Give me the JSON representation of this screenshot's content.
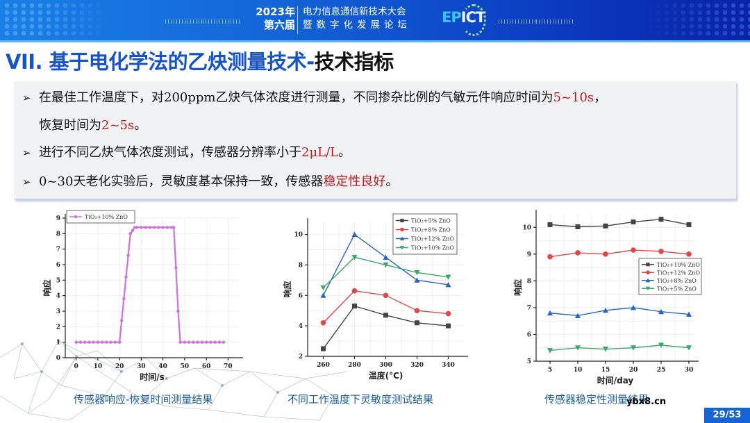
{
  "header": {
    "year": "2023年",
    "edition": "第六届",
    "conference_line1": "电力信息通信新技术大会",
    "conference_line2": "暨数字化发展论坛",
    "logo_prefix": "EP",
    "logo_suffix": "ICT"
  },
  "title": {
    "part1": "VII. 基于电化学法的乙炔测量技术-",
    "part2": "技术指标"
  },
  "bullets": [
    {
      "text_before": "在最佳工作温度下，对200ppm乙炔气体浓度进行测量，不同掺杂比例的气敏元件响应时间为",
      "highlight": "5~10s",
      "text_after": "，"
    },
    {
      "text_before": "恢复时间为",
      "highlight": "2~5s",
      "text_after": "。"
    },
    {
      "text_before": "进行不同乙炔气体浓度测试，传感器分辨率小于",
      "highlight": "2μL/L",
      "text_after": "。"
    },
    {
      "text_before": "0~30天老化实验后，灵敏度基本保持一致，传感器",
      "highlight": "稳定性良好",
      "text_after": "。"
    }
  ],
  "bullet_marker": "➢",
  "captions": [
    "传感器响应-恢复时间测量结果",
    "不同工作温度下灵敏度测试结果",
    "传感器稳定性测量结果"
  ],
  "watermark": "ybx8.cn",
  "page": "29/53",
  "colors": {
    "accent_blue": "#1553c7",
    "highlight_red": "#c0171d",
    "series_purple": "#d070e0",
    "series_gray": "#444444",
    "series_red": "#e04848",
    "series_blue": "#2a64c8",
    "series_green": "#3aa868"
  },
  "chart_data": [
    {
      "type": "line",
      "title": "传感器响应-恢复时间测量结果",
      "xlabel": "时间/s",
      "ylabel": "响应",
      "xlim": [
        -5,
        75
      ],
      "ylim": [
        0,
        9
      ],
      "xticks": [
        0,
        10,
        20,
        30,
        40,
        50,
        60,
        70
      ],
      "yticks": [
        0,
        1,
        2,
        3,
        4,
        5,
        6,
        7,
        8,
        9
      ],
      "grid": true,
      "legend_position": "top-left",
      "series": [
        {
          "name": "TiO2+10% ZnO",
          "color": "#d070e0",
          "x": [
            0,
            2,
            4,
            6,
            8,
            10,
            12,
            14,
            16,
            18,
            20,
            21,
            22,
            23,
            24,
            25,
            26,
            27,
            28,
            30,
            32,
            34,
            36,
            38,
            40,
            42,
            44,
            45,
            46,
            47,
            48,
            50,
            52,
            54,
            56,
            58,
            60,
            62,
            64,
            66,
            68
          ],
          "y": [
            1,
            1,
            1,
            1,
            1,
            1,
            1,
            1,
            1,
            1,
            1,
            2.4,
            3.8,
            5.2,
            6.6,
            8.0,
            8.2,
            8.4,
            8.4,
            8.4,
            8.4,
            8.4,
            8.4,
            8.4,
            8.4,
            8.4,
            8.4,
            8.4,
            5.8,
            3.0,
            1,
            1,
            1,
            1,
            1,
            1,
            1,
            1,
            1,
            1,
            1
          ]
        }
      ]
    },
    {
      "type": "line",
      "title": "不同工作温度下灵敏度测试结果",
      "xlabel": "温度(°C)",
      "ylabel": "响应",
      "xlim": [
        250,
        350
      ],
      "ylim": [
        2,
        10.8
      ],
      "xticks": [
        260,
        280,
        300,
        320,
        340
      ],
      "yticks": [
        2,
        4,
        6,
        8,
        10
      ],
      "grid": true,
      "legend_position": "top-right",
      "categories": [
        260,
        280,
        300,
        320,
        340
      ],
      "series": [
        {
          "name": "TiO2+5% ZnO",
          "marker": "square",
          "color": "#444444",
          "values": [
            2.5,
            5.3,
            4.7,
            4.2,
            4.0
          ]
        },
        {
          "name": "TiO2+8% ZnO",
          "marker": "circle",
          "color": "#e04848",
          "values": [
            4.2,
            6.3,
            6.0,
            5.0,
            4.8
          ]
        },
        {
          "name": "TiO2+12% ZnO",
          "marker": "triangle-up",
          "color": "#2a64c8",
          "values": [
            6.0,
            10.0,
            8.5,
            7.0,
            6.7
          ]
        },
        {
          "name": "TiO2+10% ZnO",
          "marker": "triangle-down",
          "color": "#3aa868",
          "values": [
            6.5,
            8.5,
            8.0,
            7.5,
            7.2
          ]
        }
      ]
    },
    {
      "type": "line",
      "title": "传感器稳定性测量结果",
      "xlabel": "时间/day",
      "ylabel": "响应",
      "xlim": [
        2.5,
        31
      ],
      "ylim": [
        5,
        10.5
      ],
      "xticks": [
        5,
        10,
        15,
        20,
        25,
        30
      ],
      "yticks": [
        5,
        6,
        7,
        8,
        9,
        10
      ],
      "grid": true,
      "legend_position": "right-middle",
      "categories": [
        5,
        10,
        15,
        20,
        25,
        30
      ],
      "series": [
        {
          "name": "TiO2+10% ZnO",
          "marker": "square",
          "color": "#444444",
          "values": [
            10.1,
            10.02,
            10.05,
            10.2,
            10.3,
            10.1
          ]
        },
        {
          "name": "TiO2+12% ZnO",
          "marker": "circle",
          "color": "#e04848",
          "values": [
            8.9,
            9.05,
            9.0,
            9.15,
            9.1,
            9.0
          ]
        },
        {
          "name": "TiO2+8% ZnO",
          "marker": "triangle-up",
          "color": "#2a64c8",
          "values": [
            6.8,
            6.7,
            6.9,
            7.0,
            6.85,
            6.75
          ]
        },
        {
          "name": "TiO2+5% ZnO",
          "marker": "triangle-down",
          "color": "#3aa868",
          "values": [
            5.4,
            5.5,
            5.45,
            5.5,
            5.6,
            5.5
          ]
        }
      ]
    }
  ]
}
